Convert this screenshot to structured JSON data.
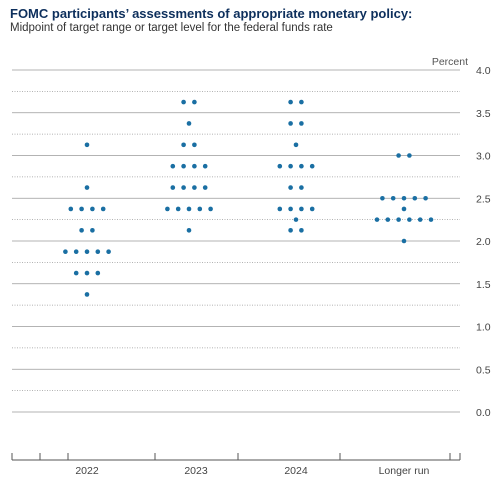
{
  "title": "FOMC participants’ assessments of appropriate monetary policy:",
  "subtitle": "Midpoint of target range or target level for the federal funds rate",
  "colors": {
    "dot": "#1a6fa3",
    "grid": "#9a9a9a",
    "axis": "#555555",
    "title": "#0d2f5c"
  },
  "chart_data": {
    "type": "scatter",
    "title": "FOMC participants’ assessments of appropriate monetary policy:",
    "subtitle": "Midpoint of target range or target level for the federal funds rate",
    "ylabel": "Percent",
    "ylim": [
      0,
      4.0
    ],
    "yticks": [
      "4.0",
      "3.5",
      "3.0",
      "2.5",
      "2.0",
      "1.5",
      "1.0",
      "0.5",
      "0.0"
    ],
    "ytick_values": [
      4.0,
      3.5,
      3.0,
      2.5,
      2.0,
      1.5,
      1.0,
      0.5,
      0.0
    ],
    "categories": [
      "2022",
      "2023",
      "2024",
      "Longer run"
    ],
    "grid": "dotted horizontal lines at every 0.25 step; solid lines at labeled ticks",
    "dots": [
      [
        {
          "value": 3.125,
          "count": 1
        },
        {
          "value": 2.625,
          "count": 1
        },
        {
          "value": 2.375,
          "count": 4
        },
        {
          "value": 2.125,
          "count": 2
        },
        {
          "value": 1.875,
          "count": 5
        },
        {
          "value": 1.625,
          "count": 3
        },
        {
          "value": 1.375,
          "count": 1
        }
      ],
      [
        {
          "value": 3.625,
          "count": 2
        },
        {
          "value": 3.375,
          "count": 1
        },
        {
          "value": 3.125,
          "count": 2
        },
        {
          "value": 2.875,
          "count": 4
        },
        {
          "value": 2.625,
          "count": 4
        },
        {
          "value": 2.375,
          "count": 5
        },
        {
          "value": 2.125,
          "count": 1
        }
      ],
      [
        {
          "value": 3.625,
          "count": 2
        },
        {
          "value": 3.375,
          "count": 2
        },
        {
          "value": 3.125,
          "count": 1
        },
        {
          "value": 2.875,
          "count": 4
        },
        {
          "value": 2.625,
          "count": 2
        },
        {
          "value": 2.375,
          "count": 4
        },
        {
          "value": 2.25,
          "count": 1
        },
        {
          "value": 2.125,
          "count": 2
        }
      ],
      [
        {
          "value": 3.0,
          "count": 2
        },
        {
          "value": 2.5,
          "count": 5
        },
        {
          "value": 2.375,
          "count": 1
        },
        {
          "value": 2.25,
          "count": 6
        },
        {
          "value": 2.0,
          "count": 1
        }
      ]
    ]
  }
}
